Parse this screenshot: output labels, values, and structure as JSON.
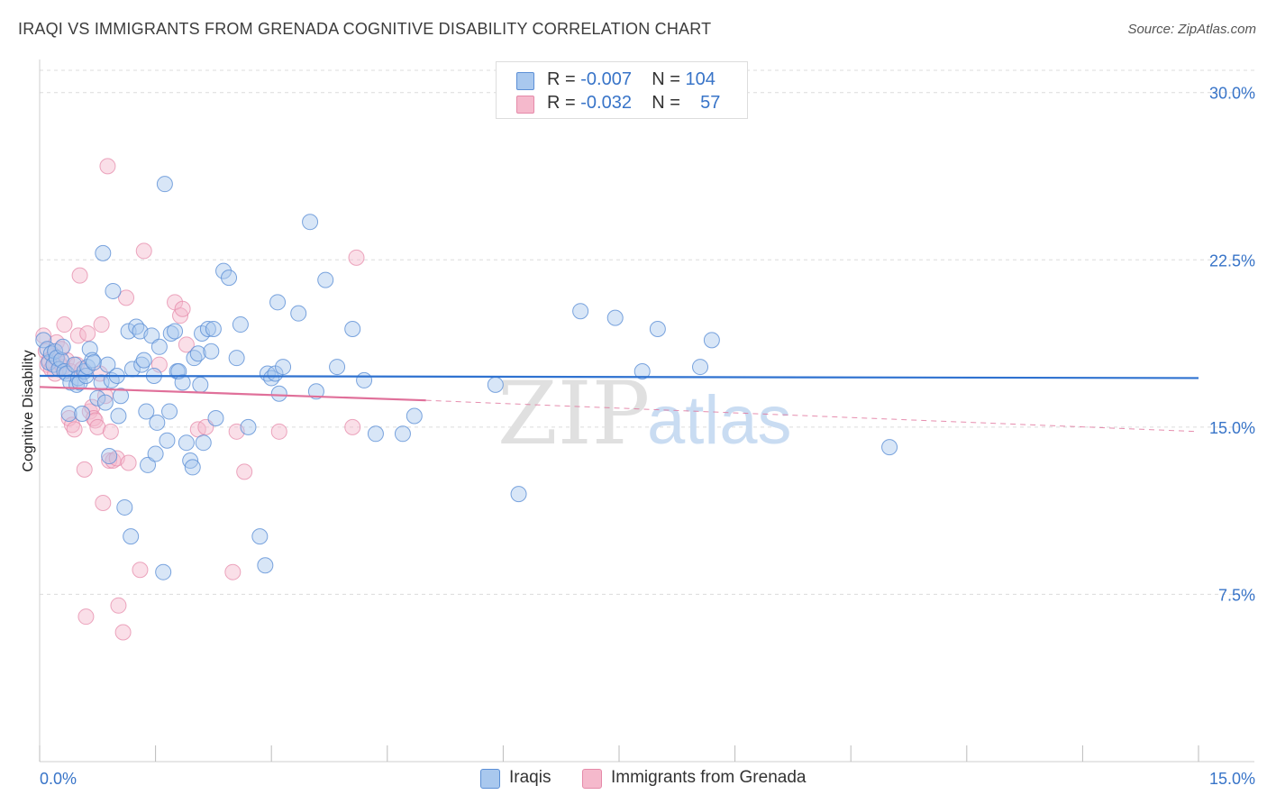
{
  "title": "IRAQI VS IMMIGRANTS FROM GRENADA COGNITIVE DISABILITY CORRELATION CHART",
  "source": "Source: ZipAtlas.com",
  "watermark": {
    "zip": "ZIP",
    "atlas": "atlas"
  },
  "legend": {
    "rows": [
      {
        "r_label": "R = ",
        "r_value": "-0.007",
        "n_label": "N = ",
        "n_value": "104"
      },
      {
        "r_label": "R = ",
        "r_value": "-0.032",
        "n_label": "N = ",
        "n_value": "57"
      }
    ]
  },
  "bottom_legend": [
    "Iraqis",
    "Immigrants from Grenada"
  ],
  "colors": {
    "iraqis_fill": "#a9c8ee",
    "iraqis_stroke": "#5b8fd6",
    "iraqis_line": "#2f72d0",
    "grenada_fill": "#f5b9cc",
    "grenada_stroke": "#e58aa9",
    "grenada_line": "#e0709a",
    "axis_text": "#3874c8",
    "grid": "#dcdcdc"
  },
  "chart_data": {
    "type": "scatter",
    "title": "IRAQI VS IMMIGRANTS FROM GRENADA COGNITIVE DISABILITY CORRELATION CHART",
    "xlabel": "",
    "ylabel": "Cognitive Disability",
    "xlim": [
      0,
      15
    ],
    "ylim": [
      0,
      31
    ],
    "x_tick_labels": [
      "0.0%",
      "15.0%"
    ],
    "y_ticks": [
      7.5,
      15.0,
      22.5,
      30.0
    ],
    "y_tick_labels": [
      "7.5%",
      "15.0%",
      "22.5%",
      "30.0%"
    ],
    "grid": true,
    "series": [
      {
        "name": "Iraqis",
        "r": -0.007,
        "n": 104,
        "trend": {
          "x": [
            0,
            15
          ],
          "y": [
            17.3,
            17.2
          ]
        },
        "points": [
          [
            0.05,
            18.9
          ],
          [
            0.1,
            18.5
          ],
          [
            0.12,
            17.9
          ],
          [
            0.15,
            18.3
          ],
          [
            0.18,
            17.8
          ],
          [
            0.2,
            18.4
          ],
          [
            0.22,
            18.1
          ],
          [
            0.25,
            17.6
          ],
          [
            0.28,
            18.0
          ],
          [
            0.3,
            18.6
          ],
          [
            0.32,
            17.5
          ],
          [
            0.35,
            17.4
          ],
          [
            0.38,
            15.6
          ],
          [
            0.4,
            17.0
          ],
          [
            0.45,
            17.8
          ],
          [
            0.48,
            16.9
          ],
          [
            0.5,
            17.2
          ],
          [
            0.52,
            17.0
          ],
          [
            0.55,
            15.6
          ],
          [
            0.58,
            17.5
          ],
          [
            0.6,
            17.3
          ],
          [
            0.62,
            17.7
          ],
          [
            0.65,
            18.5
          ],
          [
            0.68,
            18.0
          ],
          [
            0.7,
            17.9
          ],
          [
            0.75,
            16.3
          ],
          [
            0.8,
            17.0
          ],
          [
            0.82,
            22.8
          ],
          [
            0.85,
            16.1
          ],
          [
            0.88,
            17.8
          ],
          [
            0.9,
            13.7
          ],
          [
            0.93,
            17.1
          ],
          [
            0.95,
            21.1
          ],
          [
            1.0,
            17.3
          ],
          [
            1.02,
            15.5
          ],
          [
            1.05,
            16.4
          ],
          [
            1.1,
            11.4
          ],
          [
            1.15,
            19.3
          ],
          [
            1.18,
            10.1
          ],
          [
            1.2,
            17.6
          ],
          [
            1.25,
            19.5
          ],
          [
            1.3,
            19.3
          ],
          [
            1.32,
            17.8
          ],
          [
            1.35,
            18.0
          ],
          [
            1.38,
            15.7
          ],
          [
            1.4,
            13.3
          ],
          [
            1.45,
            19.1
          ],
          [
            1.48,
            17.3
          ],
          [
            1.5,
            13.8
          ],
          [
            1.52,
            15.2
          ],
          [
            1.55,
            18.6
          ],
          [
            1.6,
            8.5
          ],
          [
            1.62,
            25.9
          ],
          [
            1.65,
            14.4
          ],
          [
            1.68,
            15.7
          ],
          [
            1.7,
            19.2
          ],
          [
            1.75,
            19.3
          ],
          [
            1.78,
            17.5
          ],
          [
            1.8,
            17.5
          ],
          [
            1.85,
            17.0
          ],
          [
            1.9,
            14.3
          ],
          [
            1.95,
            13.5
          ],
          [
            1.98,
            13.2
          ],
          [
            2.0,
            18.1
          ],
          [
            2.05,
            18.3
          ],
          [
            2.08,
            16.9
          ],
          [
            2.1,
            19.2
          ],
          [
            2.12,
            14.3
          ],
          [
            2.18,
            19.4
          ],
          [
            2.22,
            18.4
          ],
          [
            2.25,
            19.4
          ],
          [
            2.28,
            15.4
          ],
          [
            2.38,
            22.0
          ],
          [
            2.45,
            21.7
          ],
          [
            2.55,
            18.1
          ],
          [
            2.6,
            19.6
          ],
          [
            2.7,
            15.0
          ],
          [
            2.85,
            10.1
          ],
          [
            2.92,
            8.8
          ],
          [
            2.95,
            17.4
          ],
          [
            3.0,
            17.2
          ],
          [
            3.05,
            17.4
          ],
          [
            3.08,
            20.6
          ],
          [
            3.1,
            16.5
          ],
          [
            3.15,
            17.7
          ],
          [
            3.35,
            20.1
          ],
          [
            3.5,
            24.2
          ],
          [
            3.58,
            16.6
          ],
          [
            3.7,
            21.6
          ],
          [
            3.85,
            17.7
          ],
          [
            4.05,
            19.4
          ],
          [
            4.2,
            17.1
          ],
          [
            4.35,
            14.7
          ],
          [
            4.7,
            14.7
          ],
          [
            4.85,
            15.5
          ],
          [
            5.9,
            16.9
          ],
          [
            6.2,
            12.0
          ],
          [
            7.0,
            20.2
          ],
          [
            7.45,
            19.9
          ],
          [
            7.8,
            17.5
          ],
          [
            8.0,
            19.4
          ],
          [
            8.55,
            17.7
          ],
          [
            8.7,
            18.9
          ],
          [
            11.0,
            14.1
          ]
        ]
      },
      {
        "name": "Immigrants from Grenada",
        "r": -0.032,
        "n": 57,
        "trend": {
          "x": [
            0,
            5
          ],
          "y": [
            16.8,
            16.2
          ]
        },
        "trend_dashed": {
          "x": [
            5,
            15
          ],
          "y": [
            16.2,
            14.8
          ]
        },
        "points": [
          [
            0.05,
            19.1
          ],
          [
            0.08,
            18.4
          ],
          [
            0.1,
            17.8
          ],
          [
            0.12,
            18.0
          ],
          [
            0.15,
            17.6
          ],
          [
            0.18,
            18.2
          ],
          [
            0.2,
            17.4
          ],
          [
            0.22,
            18.8
          ],
          [
            0.25,
            17.9
          ],
          [
            0.28,
            18.5
          ],
          [
            0.3,
            17.7
          ],
          [
            0.32,
            19.6
          ],
          [
            0.35,
            18.0
          ],
          [
            0.38,
            15.4
          ],
          [
            0.4,
            17.5
          ],
          [
            0.42,
            15.1
          ],
          [
            0.45,
            14.9
          ],
          [
            0.48,
            17.8
          ],
          [
            0.5,
            19.1
          ],
          [
            0.52,
            21.8
          ],
          [
            0.55,
            17.6
          ],
          [
            0.58,
            13.1
          ],
          [
            0.6,
            6.5
          ],
          [
            0.62,
            19.2
          ],
          [
            0.65,
            15.7
          ],
          [
            0.68,
            15.9
          ],
          [
            0.7,
            15.4
          ],
          [
            0.72,
            15.3
          ],
          [
            0.75,
            15.0
          ],
          [
            0.78,
            17.4
          ],
          [
            0.8,
            19.6
          ],
          [
            0.82,
            11.6
          ],
          [
            0.85,
            16.4
          ],
          [
            0.88,
            26.7
          ],
          [
            0.9,
            13.5
          ],
          [
            0.92,
            14.8
          ],
          [
            0.95,
            13.5
          ],
          [
            1.0,
            13.6
          ],
          [
            1.02,
            7.0
          ],
          [
            1.08,
            5.8
          ],
          [
            1.12,
            20.8
          ],
          [
            1.15,
            13.4
          ],
          [
            1.3,
            8.6
          ],
          [
            1.35,
            22.9
          ],
          [
            1.55,
            17.8
          ],
          [
            1.75,
            20.6
          ],
          [
            1.82,
            20.0
          ],
          [
            1.85,
            20.3
          ],
          [
            1.9,
            18.7
          ],
          [
            2.05,
            14.9
          ],
          [
            2.15,
            15.0
          ],
          [
            2.5,
            8.5
          ],
          [
            2.55,
            14.8
          ],
          [
            2.65,
            13.0
          ],
          [
            3.1,
            14.8
          ],
          [
            4.05,
            15.0
          ],
          [
            4.1,
            22.6
          ]
        ]
      }
    ]
  }
}
